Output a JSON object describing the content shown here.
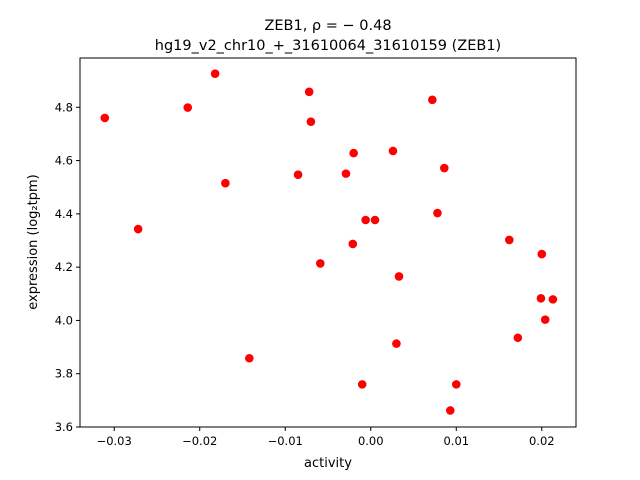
{
  "chart_data": {
    "type": "scatter",
    "title_line1": "ZEB1, ρ = − 0.48",
    "title_line2": "hg19_v2_chr10_+_31610064_31610159 (ZEB1)",
    "xlabel": "activity",
    "ylabel": "expression (log₂tpm)",
    "xlim": [
      -0.034,
      0.024
    ],
    "ylim": [
      3.6,
      4.985
    ],
    "xticks": [
      -0.03,
      -0.02,
      -0.01,
      0.0,
      0.01,
      0.02
    ],
    "xtick_labels": [
      "−0.03",
      "−0.02",
      "−0.01",
      "0.00",
      "0.01",
      "0.02"
    ],
    "yticks": [
      3.6,
      3.8,
      4.0,
      4.2,
      4.4,
      4.6,
      4.8
    ],
    "ytick_labels": [
      "3.6",
      "3.8",
      "4.0",
      "4.2",
      "4.4",
      "4.6",
      "4.8"
    ],
    "grid": false,
    "marker_color": "#ff0000",
    "points": [
      {
        "x": -0.0311,
        "y": 4.76
      },
      {
        "x": -0.0272,
        "y": 4.343
      },
      {
        "x": -0.0214,
        "y": 4.799
      },
      {
        "x": -0.0182,
        "y": 4.926
      },
      {
        "x": -0.017,
        "y": 4.515
      },
      {
        "x": -0.0142,
        "y": 3.858
      },
      {
        "x": -0.0085,
        "y": 4.547
      },
      {
        "x": -0.0072,
        "y": 4.858
      },
      {
        "x": -0.007,
        "y": 4.746
      },
      {
        "x": -0.0059,
        "y": 4.214
      },
      {
        "x": -0.0029,
        "y": 4.551
      },
      {
        "x": -0.0021,
        "y": 4.287
      },
      {
        "x": -0.002,
        "y": 4.628
      },
      {
        "x": -0.001,
        "y": 3.76
      },
      {
        "x": -0.0006,
        "y": 4.377
      },
      {
        "x": 0.0005,
        "y": 4.377
      },
      {
        "x": 0.0026,
        "y": 4.636
      },
      {
        "x": 0.003,
        "y": 3.913
      },
      {
        "x": 0.0033,
        "y": 4.165
      },
      {
        "x": 0.0072,
        "y": 4.828
      },
      {
        "x": 0.0078,
        "y": 4.403
      },
      {
        "x": 0.0086,
        "y": 4.572
      },
      {
        "x": 0.0093,
        "y": 3.662
      },
      {
        "x": 0.01,
        "y": 3.76
      },
      {
        "x": 0.0162,
        "y": 4.302
      },
      {
        "x": 0.0172,
        "y": 3.935
      },
      {
        "x": 0.0199,
        "y": 4.083
      },
      {
        "x": 0.02,
        "y": 4.249
      },
      {
        "x": 0.0204,
        "y": 4.003
      },
      {
        "x": 0.0213,
        "y": 4.079
      }
    ]
  }
}
